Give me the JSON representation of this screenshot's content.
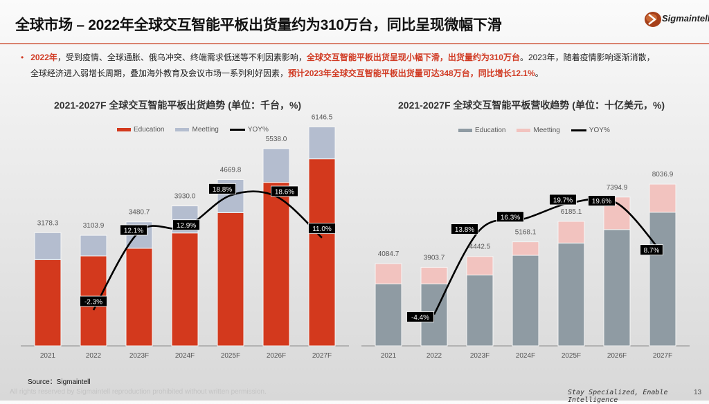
{
  "header": {
    "title": "全球市场 – 2022年全球交互智能平板出货量约为310万台，同比呈现微幅下滑",
    "logo_text": "Sigmaintell"
  },
  "summary": {
    "line1_parts": [
      {
        "text": "2022年",
        "highlight": true
      },
      {
        "text": "，受到疫情、全球通胀、俄乌冲突、终端需求低迷等不利因素影响，",
        "highlight": false
      },
      {
        "text": "全球交互智能平板出货呈现小幅下滑，出货量约为310万台",
        "highlight": true
      },
      {
        "text": "。2023年，随着疫情影响逐渐消散，",
        "highlight": false
      }
    ],
    "line2_parts": [
      {
        "text": "全球经济进入弱增长周期，叠加海外教育及会议市场一系列利好因素，",
        "highlight": false
      },
      {
        "text": "预计2023年全球交互智能平板出货量可达348万台，同比增长12.1%",
        "highlight": true
      },
      {
        "text": "。",
        "highlight": false
      }
    ]
  },
  "chart_data": [
    {
      "type": "bar",
      "stacked": true,
      "title": "2021-2027F 全球交互智能平板出货趋势 (单位：千台，%)",
      "categories": [
        "2021",
        "2022",
        "2023F",
        "2024F",
        "2025F",
        "2026F",
        "2027F"
      ],
      "series": [
        {
          "name": "Education",
          "color": "#d3391d",
          "values": [
            2420,
            2525,
            2740,
            3170,
            3740,
            4590,
            5250
          ]
        },
        {
          "name": "Meetting",
          "color": "#b4bdcf",
          "values": [
            758.3,
            578.9,
            740.7,
            760.0,
            929.8,
            948.0,
            896.5
          ]
        }
      ],
      "totals": [
        "3178.3",
        "3103.9",
        "3480.7",
        "3930.0",
        "4669.8",
        "5538.0",
        "6146.5"
      ],
      "line": {
        "name": "YOY%",
        "color": "#000000",
        "values": [
          null,
          -2.3,
          12.1,
          12.9,
          18.8,
          18.6,
          11.0
        ],
        "labels": [
          "",
          "-2.3%",
          "12.1%",
          "12.9%",
          "18.8%",
          "18.6%",
          "11.0%"
        ]
      },
      "legend_position": "top"
    },
    {
      "type": "bar",
      "stacked": true,
      "title": "2021-2027F 全球交互智能平板营收趋势 (单位：十亿美元，%)",
      "categories": [
        "2021",
        "2022",
        "2023F",
        "2024F",
        "2025F",
        "2026F",
        "2027F"
      ],
      "series": [
        {
          "name": "Education",
          "color": "#8f9ba3",
          "values": [
            3080,
            3080,
            3520,
            4500,
            5110,
            5780,
            6640
          ]
        },
        {
          "name": "Meetting",
          "color": "#f2c3bf",
          "values": [
            1004.7,
            823.7,
            922.5,
            668.1,
            1075.1,
            1614.9,
            1396.9
          ]
        }
      ],
      "totals": [
        "4084.7",
        "3903.7",
        "4442.5",
        "5168.1",
        "6185.1",
        "7394.9",
        "8036.9"
      ],
      "line": {
        "name": "YOY%",
        "color": "#000000",
        "values": [
          null,
          -4.4,
          13.8,
          16.3,
          19.7,
          19.6,
          8.7
        ],
        "labels": [
          "",
          "-4.4%",
          "13.8%",
          "16.3%",
          "19.7%",
          "19.6%",
          "8.7%"
        ]
      },
      "legend_position": "top"
    }
  ],
  "footer": {
    "source": "Source：Sigmaintell",
    "rights": "All rights reserved by Sigmaintell reproduction prohibited without written permission.",
    "slogan": "Stay Specialized, Enable Intelligence",
    "page": "13"
  }
}
